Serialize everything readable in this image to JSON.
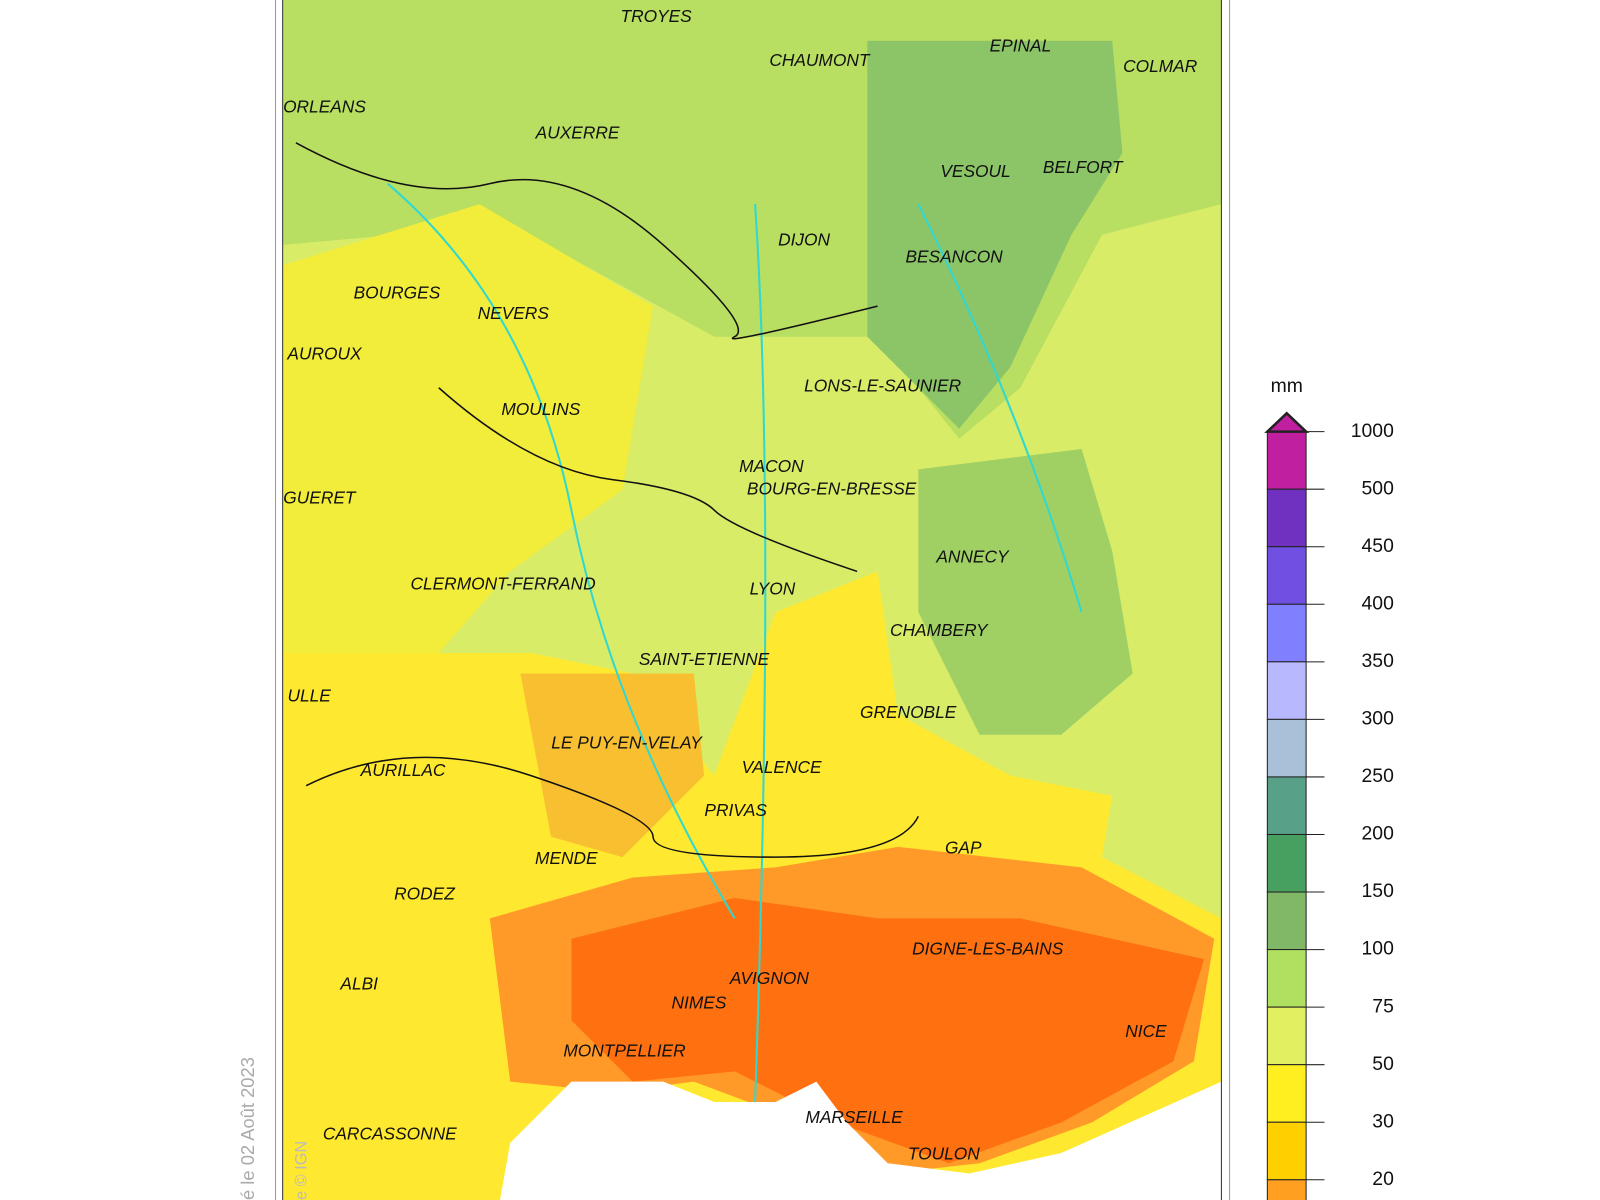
{
  "map": {
    "cities": [
      "TROYES",
      "CHAUMONT",
      "EPINAL",
      "COLMAR",
      "ORLEANS",
      "AUXERRE",
      "VESOUL",
      "BELFORT",
      "DIJON",
      "BESANCON",
      "BOURGES",
      "NEVERS",
      "AUROUX",
      "LONS-LE-SAUNIER",
      "MOULINS",
      "MACON",
      "BOURG-EN-BRESSE",
      "GUERET",
      "ANNECY",
      "CLERMONT-FERRAND",
      "LYON",
      "CHAMBERY",
      "SAINT-ETIENNE",
      "ULLE",
      "GRENOBLE",
      "LE PUY-EN-VELAY",
      "AURILLAC",
      "VALENCE",
      "PRIVAS",
      "GAP",
      "MENDE",
      "RODEZ",
      "DIGNE-LES-BAINS",
      "ALBI",
      "AVIGNON",
      "NIMES",
      "NICE",
      "MONTPELLIER",
      "MARSEILLE",
      "CARCASSONNE",
      "TOULON"
    ],
    "date_text": "é le 02 Août 2023",
    "credit_text": "e © IGN"
  },
  "legend": {
    "unit": "mm",
    "ticks": [
      1000,
      500,
      450,
      400,
      350,
      300,
      250,
      200,
      150,
      100,
      75,
      50,
      30,
      20
    ],
    "colors": [
      "#c020a0",
      "#7030c0",
      "#7050e0",
      "#8080ff",
      "#b8b8ff",
      "#a8c0d8",
      "#58a088",
      "#48a060",
      "#80b868",
      "#b0e060",
      "#e0f060",
      "#ffee20",
      "#ffd000",
      "#ffa020"
    ]
  }
}
